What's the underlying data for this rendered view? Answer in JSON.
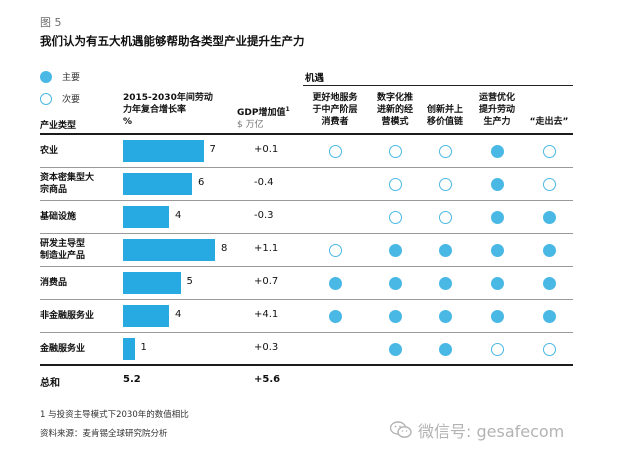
{
  "figure": {
    "label": "图 5",
    "title": "我们认为有五大机遇能够帮助各类型产业提升生产力"
  },
  "legend": {
    "primary": "主要",
    "secondary": "次要"
  },
  "headers": {
    "industry": "产业类型",
    "growth_line1": "2015-2030年间劳动",
    "growth_line2": "力年复合增长率",
    "growth_line3": "%",
    "gdp_line1": "GDP增加值",
    "gdp_line2": "$ 万亿",
    "gdp_footnote_marker": "1",
    "opportunities_title": "机遇",
    "opportunities": [
      {
        "line1": "更好地服务",
        "line2": "于中产阶层",
        "line3": "消费者"
      },
      {
        "line1": "数字化推",
        "line2": "进新的经",
        "line3": "营模式"
      },
      {
        "line1": "",
        "line2": "创新并上",
        "line3": "移价值链"
      },
      {
        "line1": "运营优化",
        "line2": "提升劳动",
        "line3": "生产力"
      },
      {
        "line1": "",
        "line2": "",
        "line3": "“走出去”"
      }
    ]
  },
  "rows": [
    {
      "industry_line1": "农业",
      "industry_line2": "",
      "growth": 7,
      "gdp": "+0.1",
      "opps": [
        "secondary",
        "secondary",
        "secondary",
        "primary",
        "secondary"
      ]
    },
    {
      "industry_line1": "资本密集型大",
      "industry_line2": "宗商品",
      "growth": 6,
      "gdp": "-0.4",
      "opps": [
        "",
        "secondary",
        "secondary",
        "primary",
        "secondary"
      ]
    },
    {
      "industry_line1": "基础设施",
      "industry_line2": "",
      "growth": 4,
      "gdp": "-0.3",
      "opps": [
        "",
        "secondary",
        "secondary",
        "primary",
        "primary"
      ]
    },
    {
      "industry_line1": "研发主导型",
      "industry_line2": "制造业产品",
      "growth": 8,
      "gdp": "+1.1",
      "opps": [
        "secondary",
        "primary",
        "primary",
        "primary",
        "primary"
      ]
    },
    {
      "industry_line1": "消费品",
      "industry_line2": "",
      "growth": 5,
      "gdp": "+0.7",
      "opps": [
        "primary",
        "primary",
        "primary",
        "primary",
        "primary"
      ]
    },
    {
      "industry_line1": "非金融服务业",
      "industry_line2": "",
      "growth": 4,
      "gdp": "+4.1",
      "opps": [
        "primary",
        "primary",
        "primary",
        "primary",
        "primary"
      ]
    },
    {
      "industry_line1": "金融服务业",
      "industry_line2": "",
      "growth": 1,
      "gdp": "+0.3",
      "opps": [
        "",
        "primary",
        "primary",
        "secondary",
        "secondary"
      ]
    }
  ],
  "total": {
    "label": "总和",
    "growth": "5.2",
    "gdp": "+5.6"
  },
  "footnotes": {
    "note1": "1 与投资主导模式下2030年的数值相比",
    "source": "资料来源：麦肯锡全球研究院分析"
  },
  "watermark": {
    "text": "微信号: gesafecom",
    "icon": "wechat-icon"
  },
  "colors": {
    "accent": "#27a9e1",
    "dot": "#49b8e4",
    "rule": "#222222"
  }
}
